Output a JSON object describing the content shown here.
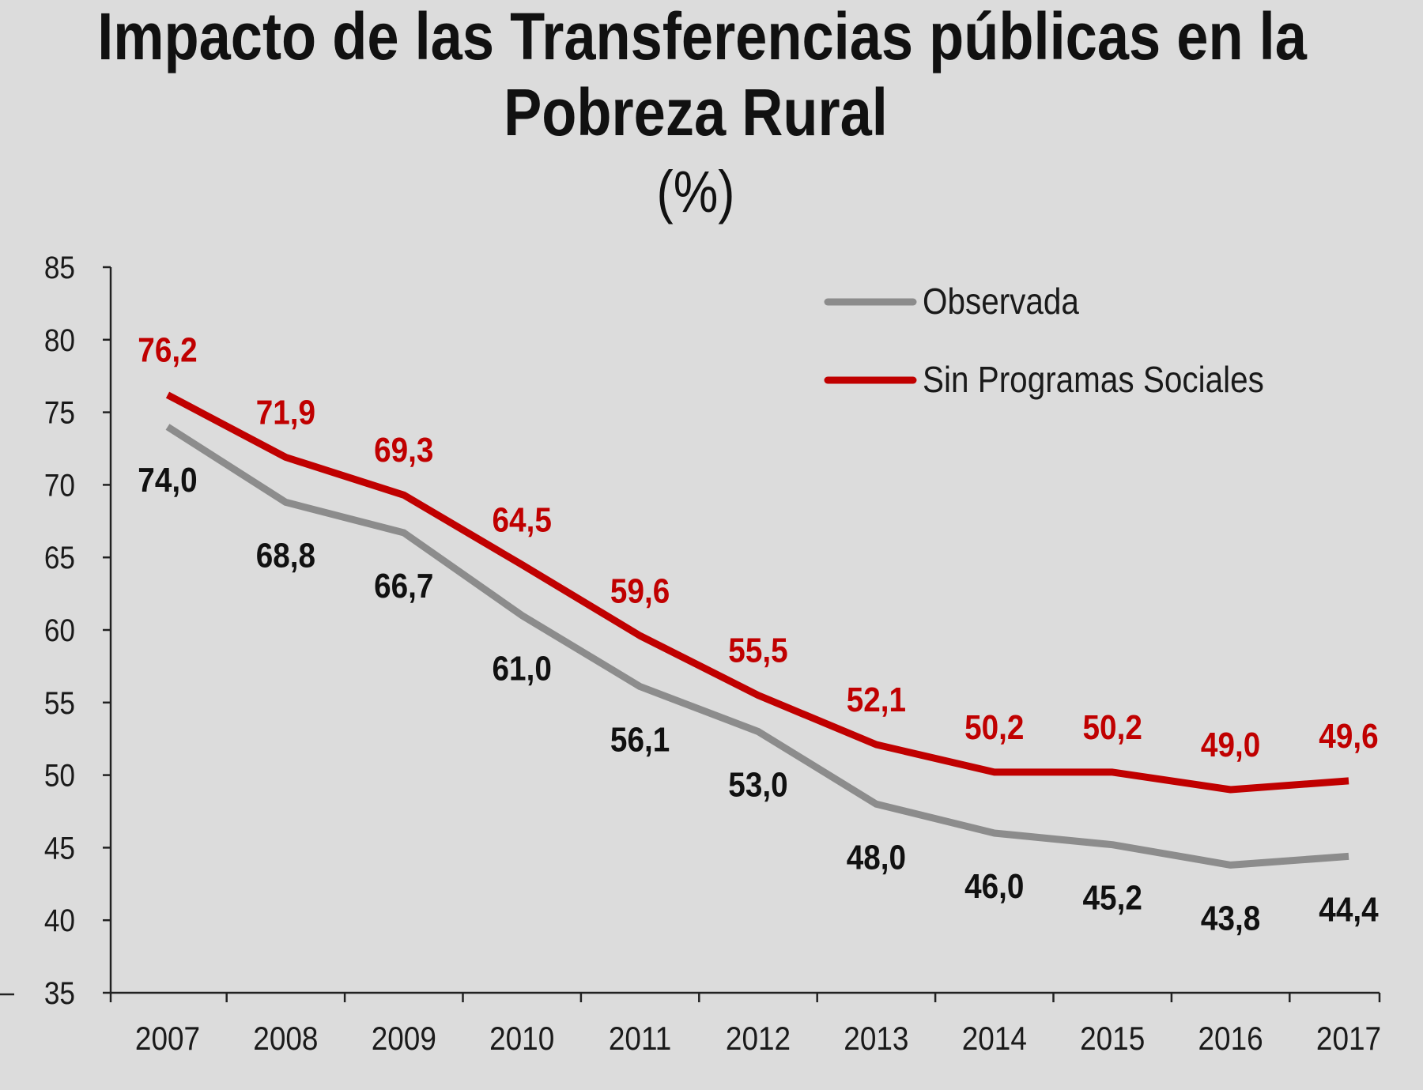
{
  "chart_data": {
    "type": "line",
    "title_lines": [
      "Impacto de las Transferencias públicas en la",
      "Pobreza Rural"
    ],
    "subtitle": "(%)",
    "xlabel": "",
    "ylabel": "",
    "ylim": [
      35,
      85
    ],
    "y_ticks": [
      "85",
      "80",
      "75",
      "70",
      "65",
      "60",
      "55",
      "50",
      "45",
      "40",
      "35"
    ],
    "y_tick_values": [
      85,
      80,
      75,
      70,
      65,
      60,
      55,
      50,
      45,
      40,
      35
    ],
    "categories": [
      "2007",
      "2008",
      "2009",
      "2010",
      "2011",
      "2012",
      "2013",
      "2014",
      "2015",
      "2016",
      "2017"
    ],
    "legend_position": "top-right",
    "grid": false,
    "series": [
      {
        "name": "Observada",
        "color": "#8c8c8c",
        "label_color": "#111111",
        "values": [
          74.0,
          68.8,
          66.7,
          61.0,
          56.1,
          53.0,
          48.0,
          46.0,
          45.2,
          43.8,
          44.4
        ],
        "labels": [
          "74,0",
          "68,8",
          "66,7",
          "61,0",
          "56,1",
          "53,0",
          "48,0",
          "46,0",
          "45,2",
          "43,8",
          "44,4"
        ]
      },
      {
        "name": "Sin Programas Sociales",
        "color": "#c00000",
        "label_color": "#c00000",
        "values": [
          76.2,
          71.9,
          69.3,
          64.5,
          59.6,
          55.5,
          52.1,
          50.2,
          50.2,
          49.0,
          49.6
        ],
        "labels": [
          "76,2",
          "71,9",
          "69,3",
          "64,5",
          "59,6",
          "55,5",
          "52,1",
          "50,2",
          "50,2",
          "49,0",
          "49,6"
        ]
      }
    ]
  }
}
